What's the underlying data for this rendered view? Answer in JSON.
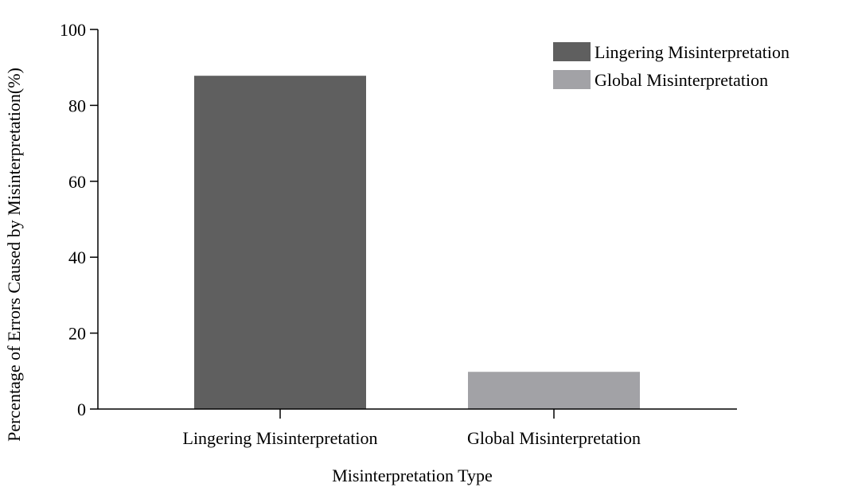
{
  "chart_data": {
    "type": "bar",
    "categories": [
      "Lingering Misinterpretation",
      "Global Misinterpretation"
    ],
    "series": [
      {
        "name": "Lingering Misinterpretation",
        "values": [
          87.8,
          null
        ],
        "color": "#5f5f5f"
      },
      {
        "name": "Global Misinterpretation",
        "values": [
          null,
          9.8
        ],
        "color": "#a2a2a6"
      }
    ],
    "xlabel": "Misinterpretation Type",
    "ylabel": "Percentage of Errors Caused by Misinterpretation(%)",
    "ylim": [
      0,
      100
    ],
    "yticks": [
      "0",
      "20",
      "40",
      "60",
      "80",
      "100"
    ],
    "grid": false,
    "legend_position": "top-right"
  }
}
